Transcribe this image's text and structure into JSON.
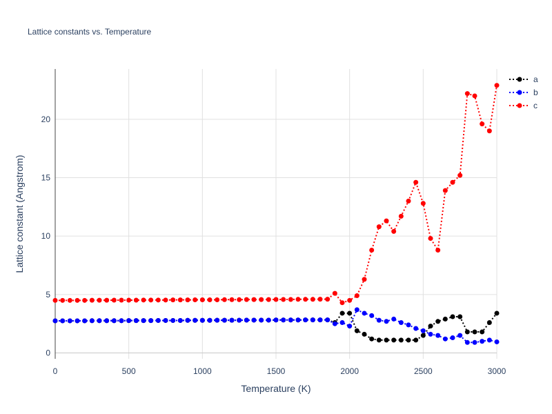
{
  "chart_data": {
    "type": "line",
    "title": "Lattice constants vs. Temperature",
    "xlabel": "Temperature (K)",
    "ylabel": "Lattice constant (Angstrom)",
    "xlim": [
      0,
      3000
    ],
    "ylim": [
      -0.5,
      24.3
    ],
    "xticks": [
      0,
      500,
      1000,
      1500,
      2000,
      2500,
      3000
    ],
    "yticks": [
      0,
      5,
      10,
      15,
      20
    ],
    "grid": true,
    "legend_position": "top-right",
    "x": [
      0,
      50,
      100,
      150,
      200,
      250,
      300,
      350,
      400,
      450,
      500,
      550,
      600,
      650,
      700,
      750,
      800,
      850,
      900,
      950,
      1000,
      1050,
      1100,
      1150,
      1200,
      1250,
      1300,
      1350,
      1400,
      1450,
      1500,
      1550,
      1600,
      1650,
      1700,
      1750,
      1800,
      1850,
      1900,
      1950,
      2000,
      2050,
      2100,
      2150,
      2200,
      2250,
      2300,
      2350,
      2400,
      2450,
      2500,
      2550,
      2600,
      2650,
      2700,
      2750,
      2800,
      2850,
      2900,
      2950,
      3000
    ],
    "series": [
      {
        "name": "a",
        "color": "#000000",
        "values": [
          2.75,
          2.75,
          2.75,
          2.75,
          2.75,
          2.76,
          2.76,
          2.76,
          2.76,
          2.76,
          2.77,
          2.77,
          2.77,
          2.77,
          2.78,
          2.78,
          2.78,
          2.78,
          2.79,
          2.79,
          2.79,
          2.79,
          2.8,
          2.8,
          2.8,
          2.8,
          2.81,
          2.81,
          2.81,
          2.81,
          2.82,
          2.82,
          2.82,
          2.82,
          2.83,
          2.83,
          2.83,
          2.83,
          2.6,
          3.4,
          3.4,
          1.9,
          1.6,
          1.2,
          1.1,
          1.1,
          1.1,
          1.1,
          1.1,
          1.1,
          1.5,
          2.3,
          2.7,
          2.9,
          3.1,
          3.1,
          1.8,
          1.8,
          1.8,
          2.6,
          3.4
        ]
      },
      {
        "name": "b",
        "color": "#0000ff",
        "values": [
          2.75,
          2.75,
          2.75,
          2.75,
          2.75,
          2.76,
          2.76,
          2.76,
          2.76,
          2.76,
          2.77,
          2.77,
          2.77,
          2.77,
          2.78,
          2.78,
          2.78,
          2.78,
          2.79,
          2.79,
          2.79,
          2.79,
          2.8,
          2.8,
          2.8,
          2.8,
          2.81,
          2.81,
          2.81,
          2.81,
          2.82,
          2.82,
          2.82,
          2.82,
          2.83,
          2.83,
          2.83,
          2.83,
          2.5,
          2.6,
          2.3,
          3.7,
          3.4,
          3.2,
          2.8,
          2.7,
          2.9,
          2.6,
          2.4,
          2.1,
          1.9,
          1.6,
          1.5,
          1.2,
          1.3,
          1.5,
          0.9,
          0.9,
          1.0,
          1.1,
          0.95
        ]
      },
      {
        "name": "c",
        "color": "#ff0000",
        "values": [
          4.5,
          4.5,
          4.5,
          4.5,
          4.5,
          4.51,
          4.51,
          4.51,
          4.52,
          4.52,
          4.52,
          4.52,
          4.53,
          4.53,
          4.53,
          4.53,
          4.54,
          4.54,
          4.54,
          4.55,
          4.55,
          4.55,
          4.55,
          4.56,
          4.56,
          4.56,
          4.57,
          4.57,
          4.57,
          4.57,
          4.58,
          4.58,
          4.58,
          4.59,
          4.59,
          4.59,
          4.6,
          4.6,
          5.1,
          4.3,
          4.5,
          4.9,
          6.3,
          8.8,
          10.8,
          11.3,
          10.4,
          11.7,
          13.0,
          14.6,
          12.8,
          9.8,
          8.8,
          13.9,
          14.6,
          15.2,
          22.2,
          22.0,
          19.6,
          19.0,
          22.9
        ]
      }
    ]
  }
}
